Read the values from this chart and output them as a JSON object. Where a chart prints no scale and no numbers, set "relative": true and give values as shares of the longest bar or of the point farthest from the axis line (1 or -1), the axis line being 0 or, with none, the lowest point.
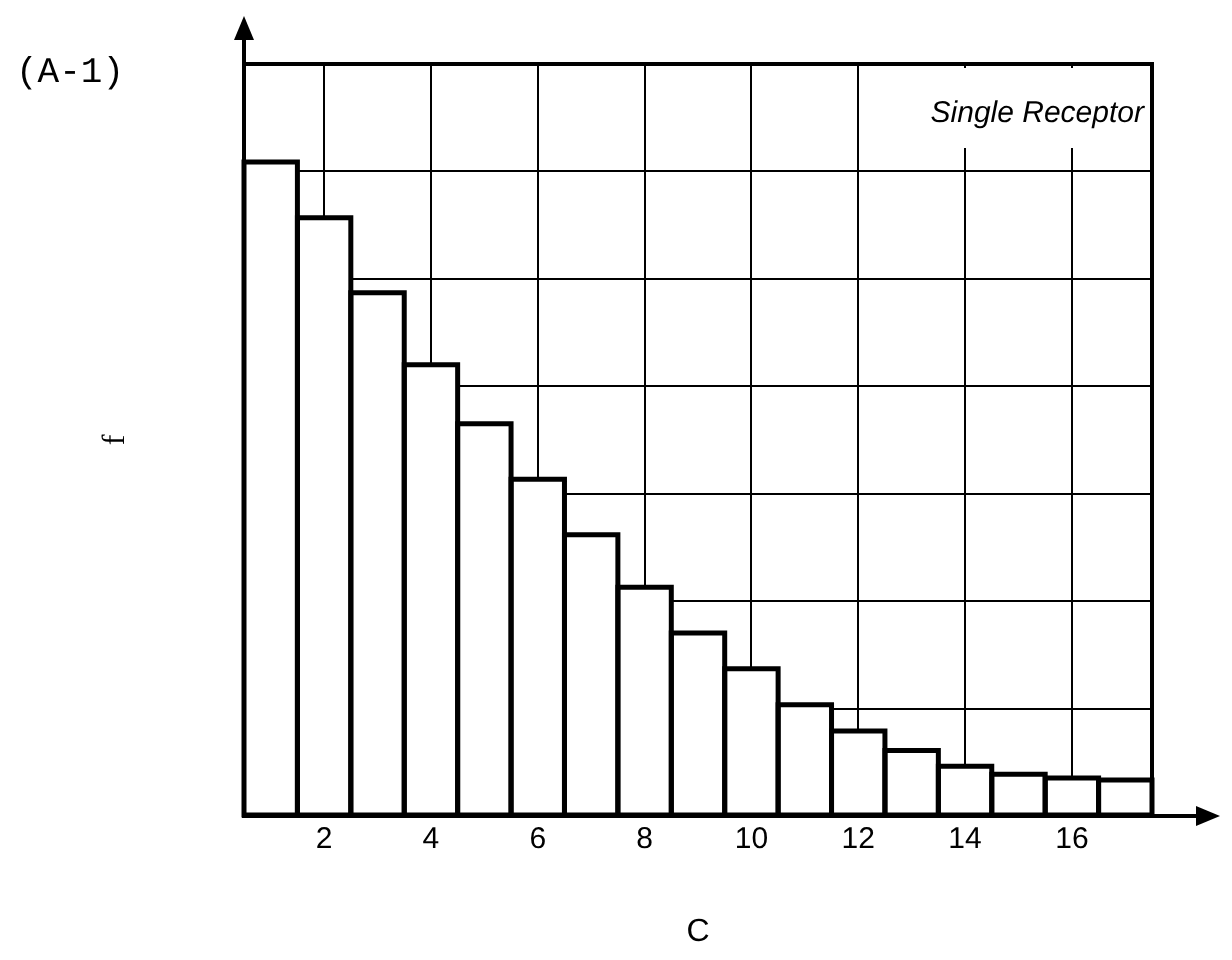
{
  "chart_data": {
    "type": "bar",
    "xlabel": "C",
    "ylabel": "f",
    "annotations": [
      "(A-1)",
      "Single Receptor"
    ],
    "categories": [
      null,
      "2",
      null,
      "4",
      null,
      "6",
      null,
      "8",
      null,
      "10",
      null,
      "12",
      null,
      "14",
      null,
      "16",
      null
    ],
    "values": [
      1,
      0.915,
      0.8,
      0.69,
      0.6,
      0.515,
      0.43,
      0.35,
      0.28,
      0.225,
      0.17,
      0.13,
      0.1,
      0.076,
      0.064,
      0.058,
      0.055
    ],
    "color": "#ffffff",
    "relative": true,
    "grid": true
  }
}
